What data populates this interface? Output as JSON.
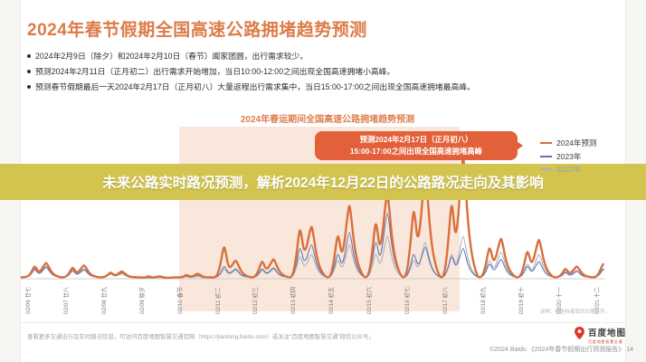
{
  "title": "2024年春节假期全国高速公路拥堵趋势预测",
  "bullets": [
    "2024年2月9日（除夕）和2024年2月10日（春节）阖家团圆，出行需求较少。",
    "预测2024年2月11日（正月初二）出行需求开始增加，当日10:00-12:00之间出现全国高速拥堵小高峰。",
    "预测春节假期最后一天2024年2月17日（正月初八）大量返程出行需求集中，当日15:00-17:00之间出现全国高速拥堵最高峰。"
  ],
  "overlay_banner": {
    "text": "未来公路实时路况预测，解析2024年12月22日的公路路况走向及其影响",
    "bg_color": "#d2c44f"
  },
  "callout": {
    "line1": "预测2024年2月17日（正月初八）",
    "line2": "15:00-17:00之间出现全国高速拥堵高峰",
    "bg_color": "#e2603a"
  },
  "chart_data": {
    "type": "line",
    "title": "2024年春运期间全国高速公路拥堵趋势预测",
    "x_dates": [
      "02/06",
      "02/07",
      "02/08",
      "02/09",
      "02/10",
      "02/11",
      "02/12",
      "02/13",
      "02/14",
      "02/15",
      "02/16",
      "02/17",
      "02/18",
      "02/19",
      "02/20",
      "02/21"
    ],
    "x_lunar": [
      "廿七",
      "廿八",
      "廿九",
      "除夕",
      "春节",
      "初二",
      "初三",
      "初四",
      "初五",
      "初六",
      "初七",
      "初八",
      "初九",
      "初十",
      "十一",
      "十二"
    ],
    "ylim": [
      0,
      100
    ],
    "grid": false,
    "legend_position": "top-right",
    "holiday_band": {
      "start_day_index": 4,
      "end_day_index": 11.4,
      "color": "#fae7db"
    },
    "series": [
      {
        "name": "2024年预测",
        "color": "#d8703d",
        "line_width": 2.4,
        "label_color": "#3c3c3c",
        "daily_peaks_am_pm": [
          [
            10,
            13
          ],
          [
            9,
            11
          ],
          [
            5,
            6
          ],
          [
            2,
            2
          ],
          [
            3,
            4
          ],
          [
            26,
            15
          ],
          [
            14,
            16
          ],
          [
            40,
            43
          ],
          [
            35,
            60
          ],
          [
            45,
            70
          ],
          [
            55,
            86
          ],
          [
            60,
            100
          ],
          [
            25,
            33
          ],
          [
            22,
            32
          ],
          [
            8,
            10
          ],
          [
            12,
            16
          ]
        ]
      },
      {
        "name": "2023年",
        "color": "#5d76b2",
        "line_width": 1.1,
        "label_color": "#3c3c3c",
        "daily_peaks_am_pm": [
          [
            8,
            10
          ],
          [
            7,
            8
          ],
          [
            4,
            5
          ],
          [
            1,
            2
          ],
          [
            2,
            3
          ],
          [
            10,
            8
          ],
          [
            8,
            9
          ],
          [
            25,
            28
          ],
          [
            20,
            38
          ],
          [
            30,
            54
          ],
          [
            20,
            26
          ],
          [
            18,
            25
          ],
          [
            12,
            16
          ],
          [
            10,
            14
          ],
          [
            5,
            6
          ],
          [
            8,
            10
          ]
        ]
      },
      {
        "name": "2022年",
        "color": "#aab0b9",
        "line_width": 1.1,
        "label_color": "#9aa0a6",
        "daily_peaks_am_pm": [
          [
            7,
            9
          ],
          [
            6,
            7
          ],
          [
            4,
            4
          ],
          [
            1,
            1
          ],
          [
            2,
            2
          ],
          [
            8,
            7
          ],
          [
            7,
            8
          ],
          [
            18,
            20
          ],
          [
            15,
            28
          ],
          [
            20,
            35
          ],
          [
            15,
            30
          ],
          [
            20,
            35
          ],
          [
            15,
            22
          ],
          [
            12,
            20
          ],
          [
            6,
            7
          ],
          [
            7,
            9
          ]
        ]
      }
    ],
    "note": "说明：横坐标按农历日期对齐。"
  },
  "footer": {
    "left": "查看更多交通出行及实时路况信息，可访问百度地图智慧交通官网（https://jiaotong.baidu.com）或关注“百度地图智慧交通”微信公众号。",
    "brand": "百度地图",
    "brand_tagline": "百度地图智慧交通",
    "copyright": "©2024 Baidu 《2024年春节假期出行预测报告》 14"
  }
}
